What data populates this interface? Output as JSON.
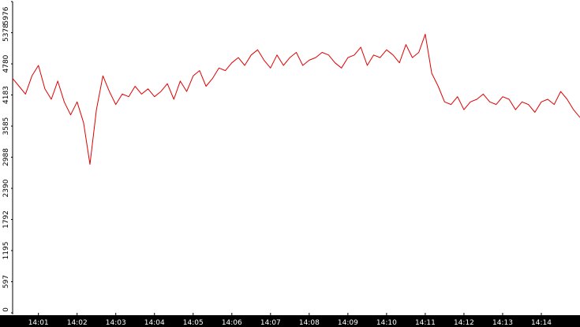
{
  "chart_data": {
    "type": "line",
    "title": "",
    "xlabel": "",
    "ylabel": "",
    "ylim": [
      0,
      5976
    ],
    "y_ticks": [
      "0",
      "597",
      "1195",
      "1792",
      "2390",
      "2988",
      "3585",
      "4183",
      "4780",
      "5378",
      "5976"
    ],
    "x_ticks": [
      "14:01",
      "14:02",
      "14:03",
      "14:04",
      "14:05",
      "14:06",
      "14:07",
      "14:08",
      "14:09",
      "14:10",
      "14:11",
      "14:12",
      "14:13",
      "14:14"
    ],
    "x_range": [
      "14:00:20",
      "14:15:00"
    ],
    "grid": false,
    "legend": "none",
    "line_color": "#e00000",
    "axis_color": "#000000",
    "axis_text_color": "#ffffff",
    "series": [
      {
        "x": [
          "14:00:20",
          "14:00:30",
          "14:00:40",
          "14:00:50",
          "14:01:00",
          "14:01:10",
          "14:01:20",
          "14:01:30",
          "14:01:40",
          "14:01:50",
          "14:02:00",
          "14:02:10",
          "14:02:20",
          "14:02:30",
          "14:02:40",
          "14:02:50",
          "14:03:00",
          "14:03:10",
          "14:03:20",
          "14:03:30",
          "14:03:40",
          "14:03:50",
          "14:04:00",
          "14:04:10",
          "14:04:20",
          "14:04:30",
          "14:04:40",
          "14:04:50",
          "14:05:00",
          "14:05:10",
          "14:05:20",
          "14:05:30",
          "14:05:40",
          "14:05:50",
          "14:06:00",
          "14:06:10",
          "14:06:20",
          "14:06:30",
          "14:06:40",
          "14:06:50",
          "14:07:00",
          "14:07:10",
          "14:07:20",
          "14:07:30",
          "14:07:40",
          "14:07:50",
          "14:08:00",
          "14:08:10",
          "14:08:20",
          "14:08:30",
          "14:08:40",
          "14:08:50",
          "14:09:00",
          "14:09:10",
          "14:09:20",
          "14:09:30",
          "14:09:40",
          "14:09:50",
          "14:10:00",
          "14:10:10",
          "14:10:20",
          "14:10:30",
          "14:10:40",
          "14:10:50",
          "14:11:00",
          "14:11:10",
          "14:11:20",
          "14:11:30",
          "14:11:40",
          "14:11:50",
          "14:12:00",
          "14:12:10",
          "14:12:20",
          "14:12:30",
          "14:12:40",
          "14:12:50",
          "14:13:00",
          "14:13:10",
          "14:13:20",
          "14:13:30",
          "14:13:40",
          "14:13:50",
          "14:14:00",
          "14:14:10",
          "14:14:20",
          "14:14:30",
          "14:14:40",
          "14:14:50",
          "14:15:00"
        ],
        "values": [
          4500,
          4350,
          4200,
          4550,
          4750,
          4300,
          4100,
          4450,
          4050,
          3800,
          4050,
          3650,
          2850,
          3900,
          4550,
          4250,
          4000,
          4200,
          4150,
          4350,
          4200,
          4300,
          4150,
          4250,
          4400,
          4100,
          4450,
          4250,
          4550,
          4650,
          4350,
          4500,
          4700,
          4650,
          4800,
          4900,
          4750,
          4950,
          5050,
          4850,
          4700,
          4950,
          4750,
          4900,
          5000,
          4750,
          4850,
          4900,
          5000,
          4950,
          4800,
          4700,
          4900,
          4950,
          5100,
          4750,
          4950,
          4900,
          5050,
          4950,
          4800,
          5150,
          4900,
          5000,
          5350,
          4600,
          4350,
          4050,
          4000,
          4150,
          3900,
          4050,
          4100,
          4200,
          4050,
          4000,
          4150,
          4100,
          3900,
          4050,
          4000,
          3850,
          4050,
          4100,
          4000,
          4250,
          4100,
          3900,
          3750
        ]
      }
    ]
  }
}
